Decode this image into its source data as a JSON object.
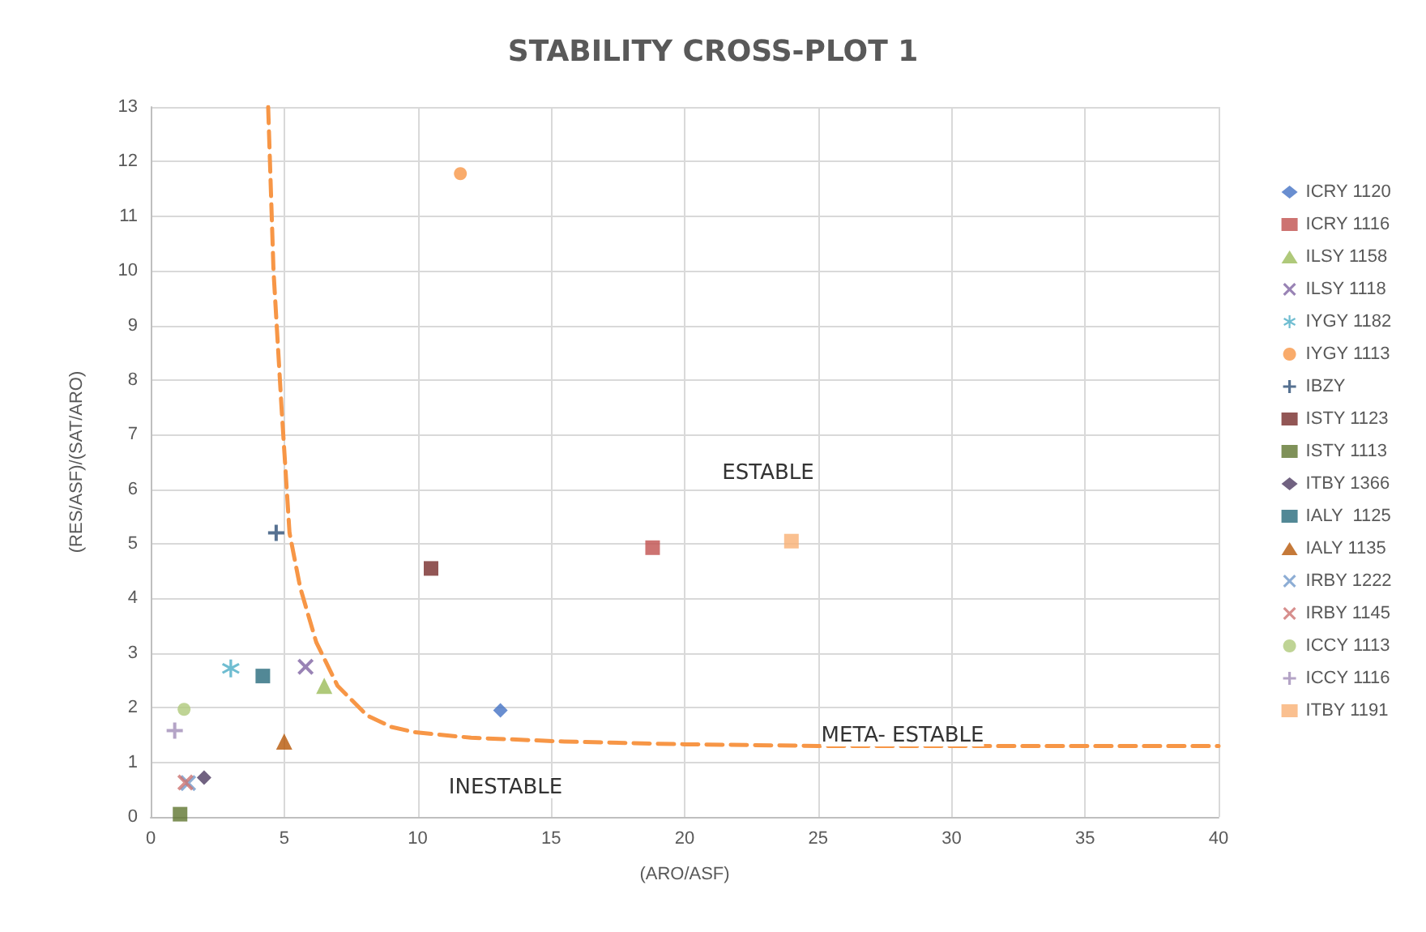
{
  "chart_data": {
    "type": "scatter",
    "title": "STABILITY CROSS-PLOT 1",
    "xlabel": "(ARO/ASF)",
    "ylabel": "(RES/ASF)/(SAT/ARO)",
    "xlim": [
      0,
      40
    ],
    "xticks": [
      0,
      5,
      10,
      15,
      20,
      25,
      30,
      35,
      40
    ],
    "ylim": [
      0,
      13
    ],
    "yticks": [
      0,
      1,
      2,
      3,
      4,
      5,
      6,
      7,
      8,
      9,
      10,
      11,
      12,
      13
    ],
    "grid": true,
    "legend": "right",
    "series": [
      {
        "name": "ICRY 1120",
        "color": "#4472c4",
        "marker": "diamond",
        "x": [
          13.1
        ],
        "values": [
          1.95
        ]
      },
      {
        "name": "ICRY 1116",
        "color": "#c0504d",
        "marker": "square",
        "x": [
          18.8
        ],
        "values": [
          4.93
        ]
      },
      {
        "name": "ILSY 1158",
        "color": "#9bbb59",
        "marker": "triangle",
        "x": [
          6.5
        ],
        "values": [
          2.4
        ]
      },
      {
        "name": "ILSY 1118",
        "color": "#8064a2",
        "marker": "x",
        "x": [
          5.8
        ],
        "values": [
          2.75
        ]
      },
      {
        "name": "IYGY 1182",
        "color": "#4bacc6",
        "marker": "star",
        "x": [
          3.0
        ],
        "values": [
          2.72
        ]
      },
      {
        "name": "IYGY 1113",
        "color": "#f79646",
        "marker": "circle",
        "x": [
          11.6
        ],
        "values": [
          11.78
        ]
      },
      {
        "name": "IBZY",
        "color": "#2c4d75",
        "marker": "cross",
        "x": [
          4.7
        ],
        "values": [
          5.2
        ]
      },
      {
        "name": "ISTY 1123",
        "color": "#772c2a",
        "marker": "square",
        "x": [
          10.5
        ],
        "values": [
          4.55
        ]
      },
      {
        "name": "ISTY 1113",
        "color": "#5f7530",
        "marker": "square",
        "x": [
          1.1
        ],
        "values": [
          0.05
        ]
      },
      {
        "name": "ITBY 1366",
        "color": "#4d3b62",
        "marker": "diamond",
        "x": [
          2.0
        ],
        "values": [
          0.72
        ]
      },
      {
        "name": "IALY  1125",
        "color": "#276a7c",
        "marker": "square",
        "x": [
          4.2
        ],
        "values": [
          2.58
        ]
      },
      {
        "name": "IALY 1135",
        "color": "#b65708",
        "marker": "triangle",
        "x": [
          5.0
        ],
        "values": [
          1.38
        ]
      },
      {
        "name": "IRBY 1222",
        "color": "#729aca",
        "marker": "x",
        "x": [
          1.4
        ],
        "values": [
          0.62
        ]
      },
      {
        "name": "IRBY 1145",
        "color": "#cd7371",
        "marker": "x",
        "x": [
          1.3
        ],
        "values": [
          0.63
        ]
      },
      {
        "name": "ICCY 1113",
        "color": "#afc97a",
        "marker": "circle",
        "x": [
          1.25
        ],
        "values": [
          1.97
        ]
      },
      {
        "name": "ICCY 1116",
        "color": "#a18db8",
        "marker": "cross",
        "x": [
          0.9
        ],
        "values": [
          1.58
        ]
      },
      {
        "name": "ITBY 1191",
        "color": "#f9b074",
        "marker": "square",
        "x": [
          24.0
        ],
        "values": [
          5.05
        ]
      },
      {
        "type": "line",
        "color": "#f79646",
        "line_style": "dashed",
        "marker": "none",
        "x": [
          4.4,
          4.6,
          4.9,
          5.2,
          5.6,
          6.2,
          7.0,
          8.1,
          9.0,
          9.9,
          12,
          15.5,
          20,
          25,
          30,
          40
        ],
        "values": [
          13,
          10,
          7.5,
          5.2,
          4.2,
          3.2,
          2.4,
          1.86,
          1.65,
          1.55,
          1.45,
          1.38,
          1.33,
          1.3,
          1.3,
          1.3
        ]
      }
    ],
    "annotations": [
      "ESTABLE",
      "META- ESTABLE",
      "INESTABLE"
    ]
  }
}
